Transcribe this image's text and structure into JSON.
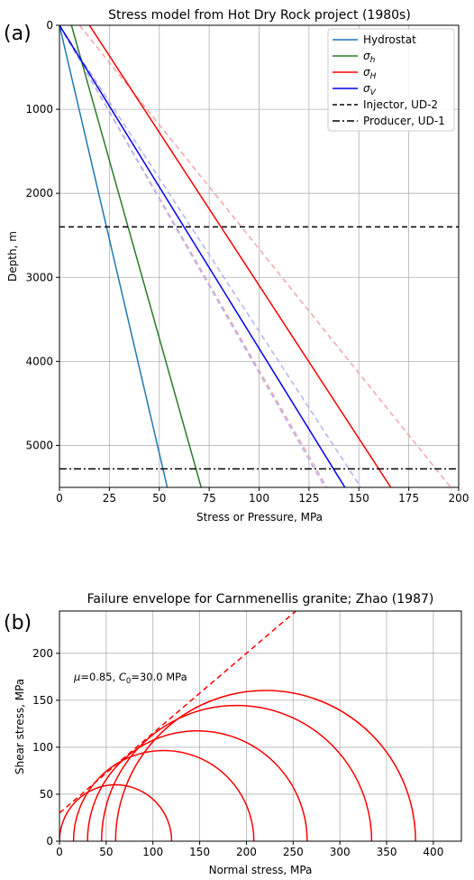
{
  "chart_data": [
    {
      "type": "line",
      "panel_label": "(a)",
      "title": "Stress model from Hot Dry Rock project (1980s)",
      "xlabel": "Stress or Pressure, MPa",
      "ylabel": "Depth, m",
      "xlim": [
        0,
        200
      ],
      "ylim": [
        5500,
        0
      ],
      "y_inverted": true,
      "grid": true,
      "legend_position": "top-right",
      "xticks": [
        "0",
        "25",
        "50",
        "75",
        "100",
        "125",
        "150",
        "175",
        "200"
      ],
      "yticks": [
        "0",
        "1000",
        "2000",
        "3000",
        "4000",
        "5000"
      ],
      "series": [
        {
          "name": "Hydrostat",
          "legend_label": "Hydrostat",
          "color": "#1f77b4",
          "style": "solid",
          "x": [
            0,
            54
          ],
          "y": [
            0,
            5500
          ]
        },
        {
          "name": "sigma_h",
          "legend_label": "σ",
          "legend_sub": "h",
          "color": "#2a7a2a",
          "style": "solid",
          "x": [
            6,
            71
          ],
          "y": [
            0,
            5500
          ]
        },
        {
          "name": "sigma_H",
          "legend_label": "σ",
          "legend_sub": "H",
          "color": "#ff0000",
          "style": "solid",
          "x": [
            15,
            166
          ],
          "y": [
            0,
            5500
          ]
        },
        {
          "name": "sigma_V",
          "legend_label": "σ",
          "legend_sub": "V",
          "color": "#0000ee",
          "style": "solid",
          "x": [
            0,
            143
          ],
          "y": [
            0,
            5500
          ]
        },
        {
          "name": "sigma_H_lower",
          "color": "#f3a6a6",
          "style": "dashed",
          "x": [
            10,
            196
          ],
          "y": [
            0,
            5500
          ]
        },
        {
          "name": "sigma_H_upper",
          "color": "#f3a6a6",
          "style": "dashed",
          "x": [
            0,
            134
          ],
          "y": [
            0,
            5500
          ]
        },
        {
          "name": "sigma_V_lower",
          "color": "#b1b1f5",
          "style": "dashed",
          "x": [
            0,
            133
          ],
          "y": [
            0,
            5500
          ]
        },
        {
          "name": "sigma_V_upper",
          "color": "#b1b1f5",
          "style": "dashed",
          "x": [
            0,
            151
          ],
          "y": [
            0,
            5500
          ]
        }
      ],
      "hlines": [
        {
          "name": "Injector, UD-2",
          "legend_label": "Injector, UD-2",
          "y": 2400,
          "style": "dashed",
          "color": "#000000"
        },
        {
          "name": "Producer, UD-1",
          "legend_label": "Producer, UD-1",
          "y": 5280,
          "style": "dashdot",
          "color": "#000000"
        }
      ]
    },
    {
      "type": "line",
      "panel_label": "(b)",
      "title": "Failure envelope for Carnmenellis granite; Zhao (1987)",
      "xlabel": "Normal stress, MPa",
      "ylabel": "Shear stress, MPa",
      "xlim": [
        0,
        430
      ],
      "ylim": [
        0,
        245
      ],
      "grid": true,
      "xticks": [
        "0",
        "50",
        "100",
        "150",
        "200",
        "250",
        "300",
        "350",
        "400"
      ],
      "yticks": [
        "0",
        "50",
        "100",
        "150",
        "200"
      ],
      "annotation": {
        "mu_label": "μ",
        "mu_value": "=0.85, ",
        "c_label": "C",
        "c_sub": "0",
        "c_value": "=30.0 MPa"
      },
      "envelope": {
        "mu": 0.85,
        "c0": 30.0,
        "color": "#ff0000",
        "style": "dashed"
      },
      "circles": [
        {
          "sigma3": 0,
          "sigma1": 120
        },
        {
          "sigma3": 15,
          "sigma1": 208
        },
        {
          "sigma3": 30,
          "sigma1": 265
        },
        {
          "sigma3": 45,
          "sigma1": 334
        },
        {
          "sigma3": 60,
          "sigma1": 381
        }
      ],
      "circle_color": "#ff0000"
    }
  ]
}
